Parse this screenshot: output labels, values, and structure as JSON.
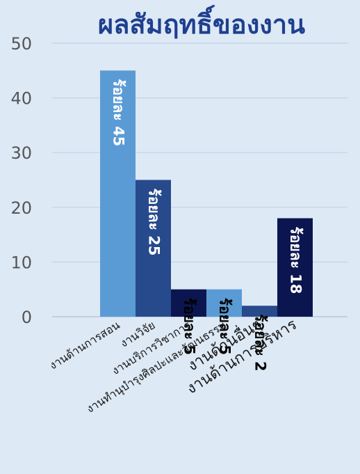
{
  "colors": {
    "background": "#dde9f5",
    "title": "#1f3f8f",
    "axis_text": "#555555",
    "grid": "#c3d3e6"
  },
  "chart_data": {
    "type": "bar",
    "title": "ผลสัมฤทธิ์ของงาน",
    "xlabel": "",
    "ylabel": "",
    "ylim": [
      0,
      50
    ],
    "yticks": [
      0,
      10,
      20,
      30,
      40,
      50
    ],
    "grid": true,
    "categories": [
      "งานด้านการสอน",
      "งานวิจัย",
      "งานบริการวิชาการ",
      "งานทำนุบำรุงศิลปะและวัฒนธรรม",
      "งานด้านอื่นๆ",
      "งานด้านการบริหาร"
    ],
    "values": [
      45,
      25,
      5,
      5,
      2,
      18
    ],
    "data_labels": [
      "ร้อยละ 45",
      "ร้อยละ 25",
      "ร้อยละ 5",
      "ร้อยละ 5",
      "ร้อยละ 2",
      "ร้อยละ 18"
    ],
    "bar_colors": [
      "#5b9bd5",
      "#264a8c",
      "#0b1650",
      "#5b9bd5",
      "#264a8c",
      "#0b1650"
    ],
    "label_colors": [
      "#ffffff",
      "#ffffff",
      "#000000",
      "#000000",
      "#000000",
      "#ffffff"
    ]
  }
}
